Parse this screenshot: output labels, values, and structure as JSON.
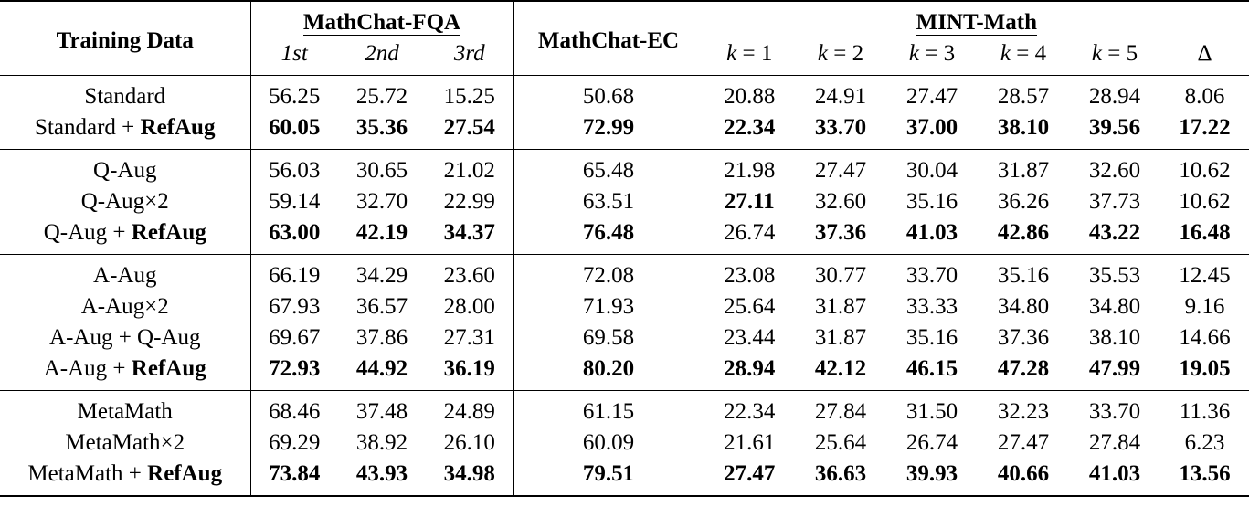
{
  "header": {
    "training_data": "Training Data",
    "fqa": "MathChat-FQA",
    "ec": "MathChat-EC",
    "mint": "MINT-Math",
    "fqa_sub": [
      "1st",
      "2nd",
      "3rd"
    ],
    "mint_sub_var": "k",
    "mint_sub_vals": [
      "1",
      "2",
      "3",
      "4",
      "5"
    ],
    "delta": "Δ"
  },
  "groups": [
    {
      "rows": [
        {
          "label": "Standard",
          "label_bold": "",
          "fqa": [
            "56.25",
            "25.72",
            "15.25"
          ],
          "ec": "50.68",
          "mint": [
            "20.88",
            "24.91",
            "27.47",
            "28.57",
            "28.94",
            "8.06"
          ],
          "bold": []
        },
        {
          "label": "Standard + ",
          "label_bold": "RefAug",
          "fqa": [
            "60.05",
            "35.36",
            "27.54"
          ],
          "ec": "72.99",
          "mint": [
            "22.34",
            "33.70",
            "37.00",
            "38.10",
            "39.56",
            "17.22"
          ],
          "bold": [
            "f0",
            "f1",
            "f2",
            "ec",
            "m0",
            "m1",
            "m2",
            "m3",
            "m4",
            "m5"
          ]
        }
      ]
    },
    {
      "rows": [
        {
          "label": "Q-Aug",
          "label_bold": "",
          "fqa": [
            "56.03",
            "30.65",
            "21.02"
          ],
          "ec": "65.48",
          "mint": [
            "21.98",
            "27.47",
            "30.04",
            "31.87",
            "32.60",
            "10.62"
          ],
          "bold": []
        },
        {
          "label": "Q-Aug×2",
          "label_bold": "",
          "fqa": [
            "59.14",
            "32.70",
            "22.99"
          ],
          "ec": "63.51",
          "mint": [
            "27.11",
            "32.60",
            "35.16",
            "36.26",
            "37.73",
            "10.62"
          ],
          "bold": [
            "m0"
          ]
        },
        {
          "label": "Q-Aug + ",
          "label_bold": "RefAug",
          "fqa": [
            "63.00",
            "42.19",
            "34.37"
          ],
          "ec": "76.48",
          "mint": [
            "26.74",
            "37.36",
            "41.03",
            "42.86",
            "43.22",
            "16.48"
          ],
          "bold": [
            "f0",
            "f1",
            "f2",
            "ec",
            "m1",
            "m2",
            "m3",
            "m4",
            "m5"
          ]
        }
      ]
    },
    {
      "rows": [
        {
          "label": "A-Aug",
          "label_bold": "",
          "fqa": [
            "66.19",
            "34.29",
            "23.60"
          ],
          "ec": "72.08",
          "mint": [
            "23.08",
            "30.77",
            "33.70",
            "35.16",
            "35.53",
            "12.45"
          ],
          "bold": []
        },
        {
          "label": "A-Aug×2",
          "label_bold": "",
          "fqa": [
            "67.93",
            "36.57",
            "28.00"
          ],
          "ec": "71.93",
          "mint": [
            "25.64",
            "31.87",
            "33.33",
            "34.80",
            "34.80",
            "9.16"
          ],
          "bold": []
        },
        {
          "label": "A-Aug + Q-Aug",
          "label_bold": "",
          "fqa": [
            "69.67",
            "37.86",
            "27.31"
          ],
          "ec": "69.58",
          "mint": [
            "23.44",
            "31.87",
            "35.16",
            "37.36",
            "38.10",
            "14.66"
          ],
          "bold": []
        },
        {
          "label": "A-Aug + ",
          "label_bold": "RefAug",
          "fqa": [
            "72.93",
            "44.92",
            "36.19"
          ],
          "ec": "80.20",
          "mint": [
            "28.94",
            "42.12",
            "46.15",
            "47.28",
            "47.99",
            "19.05"
          ],
          "bold": [
            "f0",
            "f1",
            "f2",
            "ec",
            "m0",
            "m1",
            "m2",
            "m3",
            "m4",
            "m5"
          ]
        }
      ]
    },
    {
      "rows": [
        {
          "label": "MetaMath",
          "label_bold": "",
          "fqa": [
            "68.46",
            "37.48",
            "24.89"
          ],
          "ec": "61.15",
          "mint": [
            "22.34",
            "27.84",
            "31.50",
            "32.23",
            "33.70",
            "11.36"
          ],
          "bold": []
        },
        {
          "label": "MetaMath×2",
          "label_bold": "",
          "fqa": [
            "69.29",
            "38.92",
            "26.10"
          ],
          "ec": "60.09",
          "mint": [
            "21.61",
            "25.64",
            "26.74",
            "27.47",
            "27.84",
            "6.23"
          ],
          "bold": []
        },
        {
          "label": "MetaMath + ",
          "label_bold": "RefAug",
          "fqa": [
            "73.84",
            "43.93",
            "34.98"
          ],
          "ec": "79.51",
          "mint": [
            "27.47",
            "36.63",
            "39.93",
            "40.66",
            "41.03",
            "13.56"
          ],
          "bold": [
            "f0",
            "f1",
            "f2",
            "ec",
            "m0",
            "m1",
            "m2",
            "m3",
            "m4",
            "m5"
          ]
        }
      ]
    }
  ]
}
